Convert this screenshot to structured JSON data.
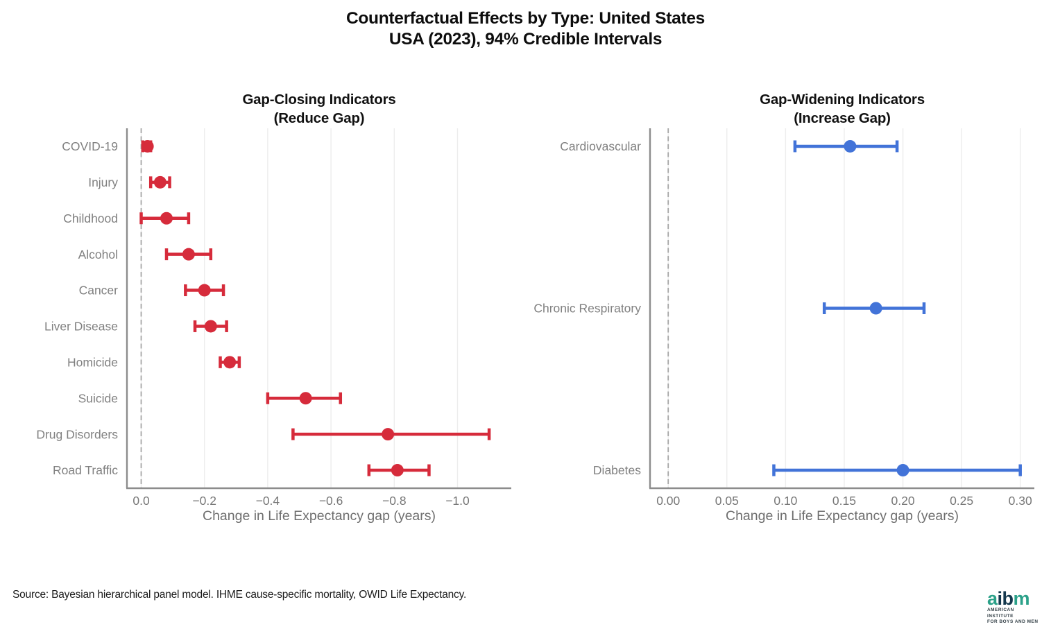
{
  "title": {
    "line1": "Counterfactual Effects by Type: United States",
    "line2": "USA (2023), 94% Credible Intervals"
  },
  "source": "Source: Bayesian hierarchical panel model. IHME cause-specific mortality, OWID Life Expectancy.",
  "logo": {
    "letters": [
      {
        "ch": "a",
        "color": "#2ba189"
      },
      {
        "ch": "i",
        "color": "#14384d"
      },
      {
        "ch": "b",
        "color": "#14384d"
      },
      {
        "ch": "m",
        "color": "#2ba189"
      }
    ],
    "sub1": "AMERICAN INSTITUTE",
    "sub2": "FOR BOYS AND MEN"
  },
  "chart_data": [
    {
      "type": "scatter",
      "subtype": "horizontal-error-bar-dot-plot",
      "panel": "left",
      "title_line1": "Gap-Closing Indicators",
      "title_line2": "(Reduce Gap)",
      "xlabel": "Change in Life Expectancy gap (years)",
      "color": "#d62b3b",
      "zero_line": true,
      "grid": true,
      "xlim": [
        0.045,
        -1.17
      ],
      "ticks": [
        0.0,
        -0.2,
        -0.4,
        -0.6,
        -0.8,
        -1.0
      ],
      "tick_labels": [
        "0.0",
        "−0.2",
        "−0.4",
        "−0.6",
        "−0.8",
        "−1.0"
      ],
      "categories": [
        "COVID-19",
        "Injury",
        "Childhood",
        "Alcohol",
        "Cancer",
        "Liver Disease",
        "Homicide",
        "Suicide",
        "Drug Disorders",
        "Road Traffic"
      ],
      "row_slots": [
        0,
        1,
        2,
        3,
        4,
        5,
        6,
        7,
        8,
        9
      ],
      "n_slots": 10,
      "values": [
        -0.02,
        -0.06,
        -0.08,
        -0.15,
        -0.2,
        -0.22,
        -0.28,
        -0.52,
        -0.78,
        -0.81
      ],
      "ci_low": [
        -0.005,
        -0.03,
        0.0,
        -0.08,
        -0.14,
        -0.17,
        -0.25,
        -0.4,
        -0.48,
        -0.72
      ],
      "ci_high": [
        -0.03,
        -0.09,
        -0.15,
        -0.22,
        -0.26,
        -0.27,
        -0.31,
        -0.63,
        -1.1,
        -0.91
      ]
    },
    {
      "type": "scatter",
      "subtype": "horizontal-error-bar-dot-plot",
      "panel": "right",
      "title_line1": "Gap-Widening Indicators",
      "title_line2": "(Increase Gap)",
      "xlabel": "Change in Life Expectancy gap (years)",
      "color": "#4273d8",
      "zero_line": true,
      "grid": true,
      "xlim": [
        -0.0155,
        0.312
      ],
      "ticks": [
        0.0,
        0.05,
        0.1,
        0.15,
        0.2,
        0.25,
        0.3
      ],
      "tick_labels": [
        "0.00",
        "0.05",
        "0.10",
        "0.15",
        "0.20",
        "0.25",
        "0.30"
      ],
      "categories": [
        "Cardiovascular",
        "Chronic Respiratory",
        "Diabetes"
      ],
      "row_slots": [
        0,
        4.5,
        9
      ],
      "n_slots": 10,
      "values": [
        0.155,
        0.177,
        0.2
      ],
      "ci_low": [
        0.108,
        0.133,
        0.09
      ],
      "ci_high": [
        0.195,
        0.218,
        0.3
      ]
    }
  ]
}
